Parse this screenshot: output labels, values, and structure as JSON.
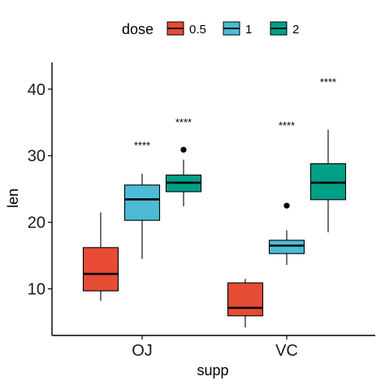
{
  "chart_data": {
    "type": "boxplot",
    "xlabel": "supp",
    "ylabel": "len",
    "ylim": [
      3,
      44
    ],
    "yticks": [
      10,
      20,
      30,
      40
    ],
    "categories": [
      "OJ",
      "VC"
    ],
    "legend": {
      "title": "dose",
      "position": "top"
    },
    "series": [
      {
        "name": "0.5",
        "color": "#E64B35"
      },
      {
        "name": "1",
        "color": "#4DBBD5"
      },
      {
        "name": "2",
        "color": "#00A087"
      }
    ],
    "boxes": [
      {
        "category": "OJ",
        "series": "0.5",
        "whisker_low": 8.2,
        "q1": 9.7,
        "median": 12.25,
        "q3": 16.2,
        "whisker_high": 21.5,
        "outliers": []
      },
      {
        "category": "OJ",
        "series": "1",
        "whisker_low": 14.5,
        "q1": 20.3,
        "median": 23.45,
        "q3": 25.6,
        "whisker_high": 27.3,
        "outliers": []
      },
      {
        "category": "OJ",
        "series": "2",
        "whisker_low": 22.4,
        "q1": 24.6,
        "median": 25.95,
        "q3": 27.1,
        "whisker_high": 29.4,
        "outliers": [
          30.9
        ]
      },
      {
        "category": "VC",
        "series": "0.5",
        "whisker_low": 4.2,
        "q1": 5.95,
        "median": 7.15,
        "q3": 10.9,
        "whisker_high": 11.5,
        "outliers": []
      },
      {
        "category": "VC",
        "series": "1",
        "whisker_low": 13.6,
        "q1": 15.3,
        "median": 16.5,
        "q3": 17.3,
        "whisker_high": 18.8,
        "outliers": [
          22.5
        ]
      },
      {
        "category": "VC",
        "series": "2",
        "whisker_low": 18.5,
        "q1": 23.4,
        "median": 25.95,
        "q3": 28.8,
        "whisker_high": 33.9,
        "outliers": []
      }
    ],
    "annotations": [
      {
        "category": "OJ",
        "series": "1",
        "text": "****",
        "y": 31
      },
      {
        "category": "OJ",
        "series": "2",
        "text": "****",
        "y": 34.5
      },
      {
        "category": "VC",
        "series": "1",
        "text": "****",
        "y": 34
      },
      {
        "category": "VC",
        "series": "2",
        "text": "****",
        "y": 40.5
      }
    ]
  }
}
